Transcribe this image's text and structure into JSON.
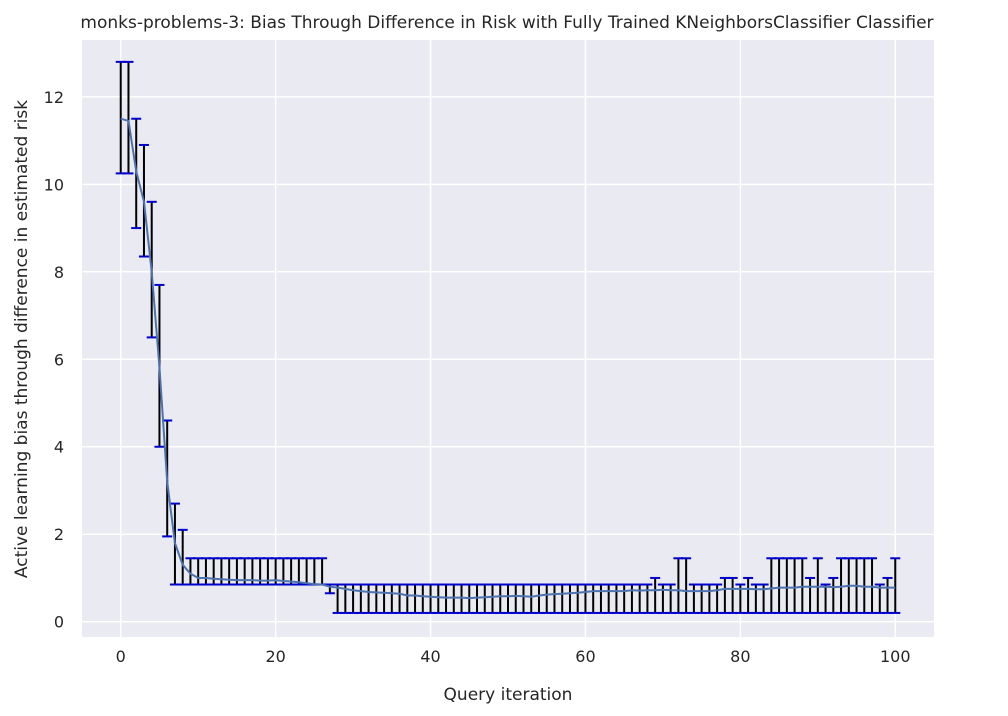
{
  "chart_data": {
    "type": "line",
    "title": "monks-problems-3: Bias Through Difference in Risk with Fully Trained KNeighborsClassifier Classifier",
    "xlabel": "Query iteration",
    "ylabel": "Active learning bias through difference in estimated risk",
    "xlim": [
      -5,
      105
    ],
    "ylim": [
      -0.35,
      13.3
    ],
    "xticks": [
      0,
      20,
      40,
      60,
      80,
      100
    ],
    "yticks": [
      0,
      2,
      4,
      6,
      8,
      10,
      12
    ],
    "grid": true,
    "background": "#eaeaf2",
    "line_color": "#4c72b0",
    "errorbar_color": "#000000",
    "cap_color": "#0000cc",
    "series": [
      {
        "x": [
          0,
          1,
          2,
          3,
          4,
          5,
          6,
          7,
          8,
          9,
          10,
          11,
          12,
          13,
          14,
          15,
          16,
          17,
          18,
          19,
          20,
          21,
          22,
          23,
          24,
          25,
          26,
          27,
          28,
          29,
          30,
          31,
          32,
          33,
          34,
          35,
          36,
          37,
          38,
          39,
          40,
          41,
          42,
          43,
          44,
          45,
          46,
          47,
          48,
          49,
          50,
          51,
          52,
          53,
          54,
          55,
          56,
          57,
          58,
          59,
          60,
          61,
          62,
          63,
          64,
          65,
          66,
          67,
          68,
          69,
          70,
          71,
          72,
          73,
          74,
          75,
          76,
          77,
          78,
          79,
          80,
          81,
          82,
          83,
          84,
          85,
          86,
          87,
          88,
          89,
          90,
          91,
          92,
          93,
          94,
          95,
          96,
          97,
          98,
          99,
          100
        ],
        "y": [
          11.5,
          11.45,
          10.3,
          9.6,
          8.0,
          5.8,
          3.2,
          1.8,
          1.3,
          1.1,
          1.0,
          1.0,
          0.98,
          0.97,
          0.96,
          0.95,
          0.95,
          0.95,
          0.94,
          0.94,
          0.95,
          0.93,
          0.92,
          0.9,
          0.88,
          0.86,
          0.85,
          0.8,
          0.78,
          0.75,
          0.72,
          0.7,
          0.68,
          0.67,
          0.66,
          0.65,
          0.64,
          0.6,
          0.6,
          0.58,
          0.57,
          0.56,
          0.55,
          0.55,
          0.55,
          0.54,
          0.55,
          0.56,
          0.57,
          0.58,
          0.58,
          0.59,
          0.58,
          0.57,
          0.6,
          0.62,
          0.63,
          0.64,
          0.65,
          0.66,
          0.68,
          0.7,
          0.7,
          0.7,
          0.7,
          0.7,
          0.72,
          0.71,
          0.72,
          0.72,
          0.73,
          0.72,
          0.72,
          0.7,
          0.7,
          0.7,
          0.7,
          0.72,
          0.75,
          0.75,
          0.75,
          0.75,
          0.74,
          0.74,
          0.76,
          0.78,
          0.78,
          0.78,
          0.8,
          0.8,
          0.8,
          0.8,
          0.79,
          0.8,
          0.82,
          0.82,
          0.8,
          0.8,
          0.78,
          0.78,
          0.78
        ],
        "lower": [
          10.25,
          10.25,
          9.0,
          8.35,
          6.5,
          4.0,
          1.95,
          0.85,
          0.85,
          0.85,
          0.85,
          0.85,
          0.85,
          0.85,
          0.85,
          0.85,
          0.85,
          0.85,
          0.85,
          0.85,
          0.85,
          0.85,
          0.85,
          0.85,
          0.85,
          0.85,
          0.85,
          0.65,
          0.2,
          0.2,
          0.2,
          0.2,
          0.2,
          0.2,
          0.2,
          0.2,
          0.2,
          0.2,
          0.2,
          0.2,
          0.2,
          0.2,
          0.2,
          0.2,
          0.2,
          0.2,
          0.2,
          0.2,
          0.2,
          0.2,
          0.2,
          0.2,
          0.2,
          0.2,
          0.2,
          0.2,
          0.2,
          0.2,
          0.2,
          0.2,
          0.2,
          0.2,
          0.2,
          0.2,
          0.2,
          0.2,
          0.2,
          0.2,
          0.2,
          0.2,
          0.2,
          0.2,
          0.2,
          0.2,
          0.2,
          0.2,
          0.2,
          0.2,
          0.2,
          0.2,
          0.2,
          0.2,
          0.2,
          0.2,
          0.2,
          0.2,
          0.2,
          0.2,
          0.2,
          0.2,
          0.2,
          0.2,
          0.2,
          0.2,
          0.2,
          0.2,
          0.2,
          0.2,
          0.2,
          0.2,
          0.2
        ],
        "upper": [
          12.8,
          12.8,
          11.5,
          10.9,
          9.6,
          7.7,
          4.6,
          2.7,
          2.1,
          1.45,
          1.45,
          1.45,
          1.45,
          1.45,
          1.45,
          1.45,
          1.45,
          1.45,
          1.45,
          1.45,
          1.45,
          1.45,
          1.45,
          1.45,
          1.45,
          1.45,
          1.45,
          0.85,
          0.85,
          0.85,
          0.85,
          0.85,
          0.85,
          0.85,
          0.85,
          0.85,
          0.85,
          0.85,
          0.85,
          0.85,
          0.85,
          0.85,
          0.85,
          0.85,
          0.85,
          0.85,
          0.85,
          0.85,
          0.85,
          0.85,
          0.85,
          0.85,
          0.85,
          0.85,
          0.85,
          0.85,
          0.85,
          0.85,
          0.85,
          0.85,
          0.85,
          0.85,
          0.85,
          0.85,
          0.85,
          0.85,
          0.85,
          0.85,
          0.85,
          1.0,
          0.85,
          0.85,
          1.45,
          1.45,
          0.85,
          0.85,
          0.85,
          0.85,
          1.0,
          1.0,
          0.85,
          1.0,
          0.85,
          0.85,
          1.45,
          1.45,
          1.45,
          1.45,
          1.45,
          1.0,
          1.45,
          0.85,
          1.0,
          1.45,
          1.45,
          1.45,
          1.45,
          1.45,
          0.85,
          1.0,
          1.45
        ]
      }
    ]
  }
}
